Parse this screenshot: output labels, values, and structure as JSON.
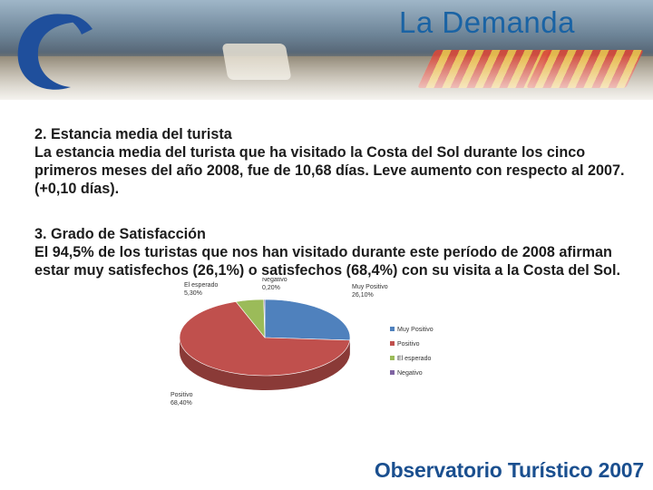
{
  "header": {
    "title": "La Demanda"
  },
  "section1": {
    "heading": "2. Estancia media del turista",
    "body": "La estancia media del turista que ha visitado la Costa del Sol durante los cinco primeros meses del año 2008, fue de 10,68 días. Leve aumento con respecto al 2007. (+0,10 días)."
  },
  "section2": {
    "heading": "3. Grado de Satisfacción",
    "body": "El 94,5% de los turistas que nos han visitado durante este período de 2008 afirman estar muy satisfechos (26,1%) o satisfechos (68,4%) con su visita a la Costa del Sol."
  },
  "footer": {
    "brand": "Observatorio Turístico 2007"
  },
  "chart_data": {
    "type": "pie",
    "categories": [
      "Muy Positivo",
      "Positivo",
      "El esperado",
      "Negativo"
    ],
    "values": [
      26.1,
      68.4,
      5.3,
      0.2
    ],
    "labels": [
      "26,10%",
      "68,40%",
      "5,30%",
      "0,20%"
    ],
    "colors": [
      "#4f81bd",
      "#c0504d",
      "#9bbb59",
      "#8064a2"
    ],
    "legend_position": "right"
  }
}
